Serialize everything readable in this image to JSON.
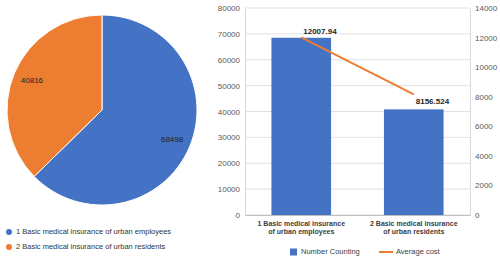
{
  "chart_data": [
    {
      "type": "pie",
      "categories": [
        "1 Basic medical insurance of urban employees",
        "2 Basic medical insurance of urban residents"
      ],
      "values": [
        68498,
        40816
      ],
      "colors": [
        "#4472c4",
        "#ed7d31"
      ],
      "data_labels": true,
      "legend": "bottom"
    },
    {
      "type": "bar",
      "categories": [
        "1 Basic medical insurance of urban employees",
        "2 Basic medical insurance of urban residents"
      ],
      "series": [
        {
          "name": "Number Counting",
          "type": "bar",
          "color": "#4472c4",
          "values": [
            68498,
            40816
          ]
        },
        {
          "name": "Average cost",
          "type": "line",
          "color": "#ed7d31",
          "axis": "y2",
          "values": [
            12007.94,
            8156.524
          ],
          "data_labels": true
        }
      ],
      "ylim": [
        0,
        80000
      ],
      "yticks": [
        0,
        10000,
        20000,
        30000,
        40000,
        50000,
        60000,
        70000,
        80000
      ],
      "y2lim": [
        0,
        14000
      ],
      "y2ticks": [
        0,
        2000,
        4000,
        6000,
        8000,
        10000,
        12000,
        14000
      ],
      "grid": true,
      "legend": "bottom"
    }
  ]
}
